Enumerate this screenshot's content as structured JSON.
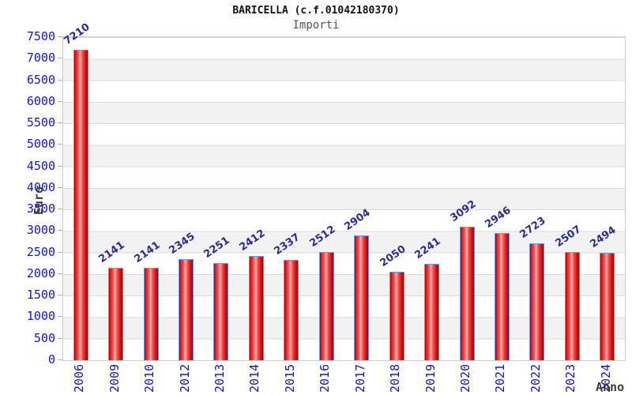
{
  "header": {
    "title": "BARICELLA (c.f.01042180370)",
    "subtitle": "Importi"
  },
  "chart_data": {
    "type": "bar",
    "title": "BARICELLA (c.f.01042180370)",
    "subtitle": "Importi",
    "xlabel": "Anno",
    "ylabel": "Euro",
    "categories": [
      "2006",
      "2009",
      "2010",
      "2012",
      "2013",
      "2014",
      "2015",
      "2016",
      "2017",
      "2018",
      "2019",
      "2020",
      "2021",
      "2022",
      "2023",
      "2024"
    ],
    "values": [
      7210,
      2141,
      2141,
      2345,
      2251,
      2412,
      2337,
      2512,
      2904,
      2050,
      2241,
      3092,
      2946,
      2723,
      2507,
      2494
    ],
    "ylim": [
      0,
      7500
    ],
    "ytick_step": 500,
    "yticks": [
      0,
      500,
      1000,
      1500,
      2000,
      2500,
      3000,
      3500,
      4000,
      4500,
      5000,
      5500,
      6000,
      6500,
      7000,
      7500
    ],
    "grid": true,
    "legend": null,
    "bands_alternating": true,
    "colors": {
      "axis_text": "#1414cc",
      "value_text": "#2a2a99",
      "title": "#111111",
      "subtitle": "#555555",
      "axis_title": "#3c3c3c",
      "bar_border": "#5f9bf0",
      "bar_red_dark": "#b00000",
      "bar_red_mid": "#e62020",
      "bar_red_light": "#f7adad",
      "band_gray": "#f2f2f2",
      "gridline": "#d9d9d9",
      "plot_border": "#cccccc",
      "tick_mark": "#b0b0b0"
    }
  }
}
